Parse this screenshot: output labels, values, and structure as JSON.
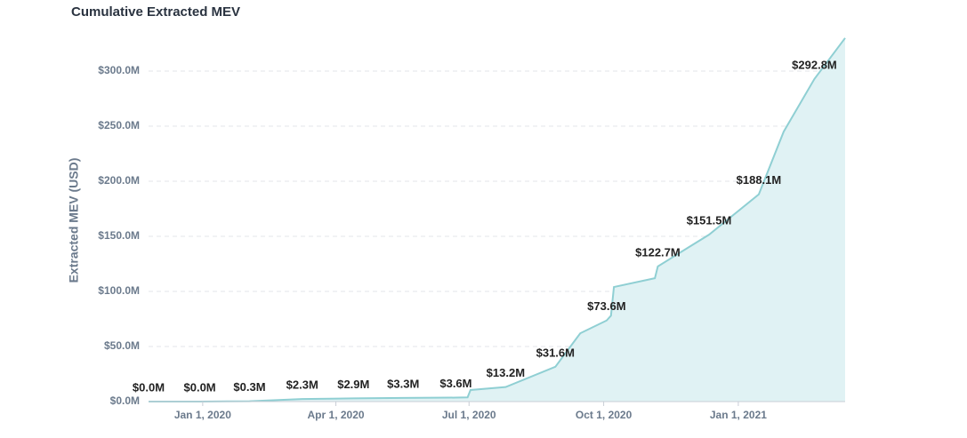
{
  "chart_data": {
    "type": "area",
    "title": "Cumulative Extracted MEV",
    "y_label": "Extracted MEV (USD)",
    "x": [
      "2019-11-25",
      "2019-12-30",
      "2020-02-02",
      "2020-03-09",
      "2020-04-13",
      "2020-05-17",
      "2020-06-22",
      "2020-06-30",
      "2020-07-02",
      "2020-07-26",
      "2020-08-29",
      "2020-09-15",
      "2020-10-03",
      "2020-10-06",
      "2020-10-08",
      "2020-11-05",
      "2020-11-07",
      "2020-12-12",
      "2021-01-15",
      "2021-02-01",
      "2021-02-22",
      "2021-03-15"
    ],
    "series": [
      {
        "name": "Extracted MEV",
        "color": "#8fcfd3",
        "fill": "#e0f2f4",
        "values": [
          0.0,
          0.0,
          0.3,
          2.3,
          2.9,
          3.3,
          3.6,
          3.8,
          10.5,
          13.2,
          31.6,
          62,
          73.6,
          78,
          104,
          112,
          122.7,
          151.5,
          188.1,
          245,
          292.8,
          330
        ],
        "value_labels": [
          "$0.0M",
          "$0.0M",
          "$0.3M",
          "$2.3M",
          "$2.9M",
          "$3.3M",
          "$3.6M",
          null,
          null,
          "$13.2M",
          "$31.6M",
          null,
          "$73.6M",
          null,
          null,
          null,
          "$122.7M",
          "$151.5M",
          "$188.1M",
          null,
          "$292.8M",
          null
        ]
      }
    ],
    "xlim": [
      "2019-11-25",
      "2021-03-15"
    ],
    "xticks": [
      {
        "value": "2020-01-01",
        "label": "Jan 1, 2020"
      },
      {
        "value": "2020-04-01",
        "label": "Apr 1, 2020"
      },
      {
        "value": "2020-07-01",
        "label": "Jul 1, 2020"
      },
      {
        "value": "2020-10-01",
        "label": "Oct 1, 2020"
      },
      {
        "value": "2021-01-01",
        "label": "Jan 1, 2021"
      }
    ],
    "ylim": [
      0,
      335
    ],
    "yticks": [
      {
        "value": 0,
        "label": "$0.0M"
      },
      {
        "value": 50,
        "label": "$50.0M"
      },
      {
        "value": 100,
        "label": "$100.0M"
      },
      {
        "value": 150,
        "label": "$150.0M"
      },
      {
        "value": 200,
        "label": "$200.0M"
      },
      {
        "value": 250,
        "label": "$250.0M"
      },
      {
        "value": 300,
        "label": "$300.0M"
      }
    ],
    "grid": true
  }
}
